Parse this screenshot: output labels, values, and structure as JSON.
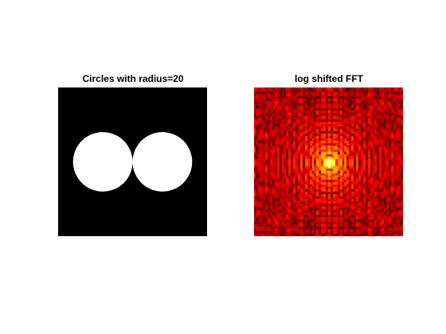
{
  "chart_data": [
    {
      "type": "heatmap",
      "title": "Circles with radius=20",
      "xlabel": "",
      "ylabel": "",
      "grid": false,
      "colormap": "gray",
      "image_size": [
        100,
        100
      ],
      "circles": [
        {
          "center_x": 30,
          "center_y": 50,
          "radius": 20
        },
        {
          "center_x": 70,
          "center_y": 50,
          "radius": 20
        }
      ],
      "colors": {
        "background": "#000000",
        "foreground": "#ffffff"
      }
    },
    {
      "type": "heatmap",
      "title": "log shifted FFT",
      "xlabel": "",
      "ylabel": "",
      "grid": false,
      "colormap": "hot",
      "image_size": [
        100,
        100
      ],
      "peak": {
        "x": 50,
        "y": 50
      },
      "colors": {
        "low": "#000000",
        "mid": "#ff0000",
        "high": "#ffffff"
      }
    }
  ]
}
